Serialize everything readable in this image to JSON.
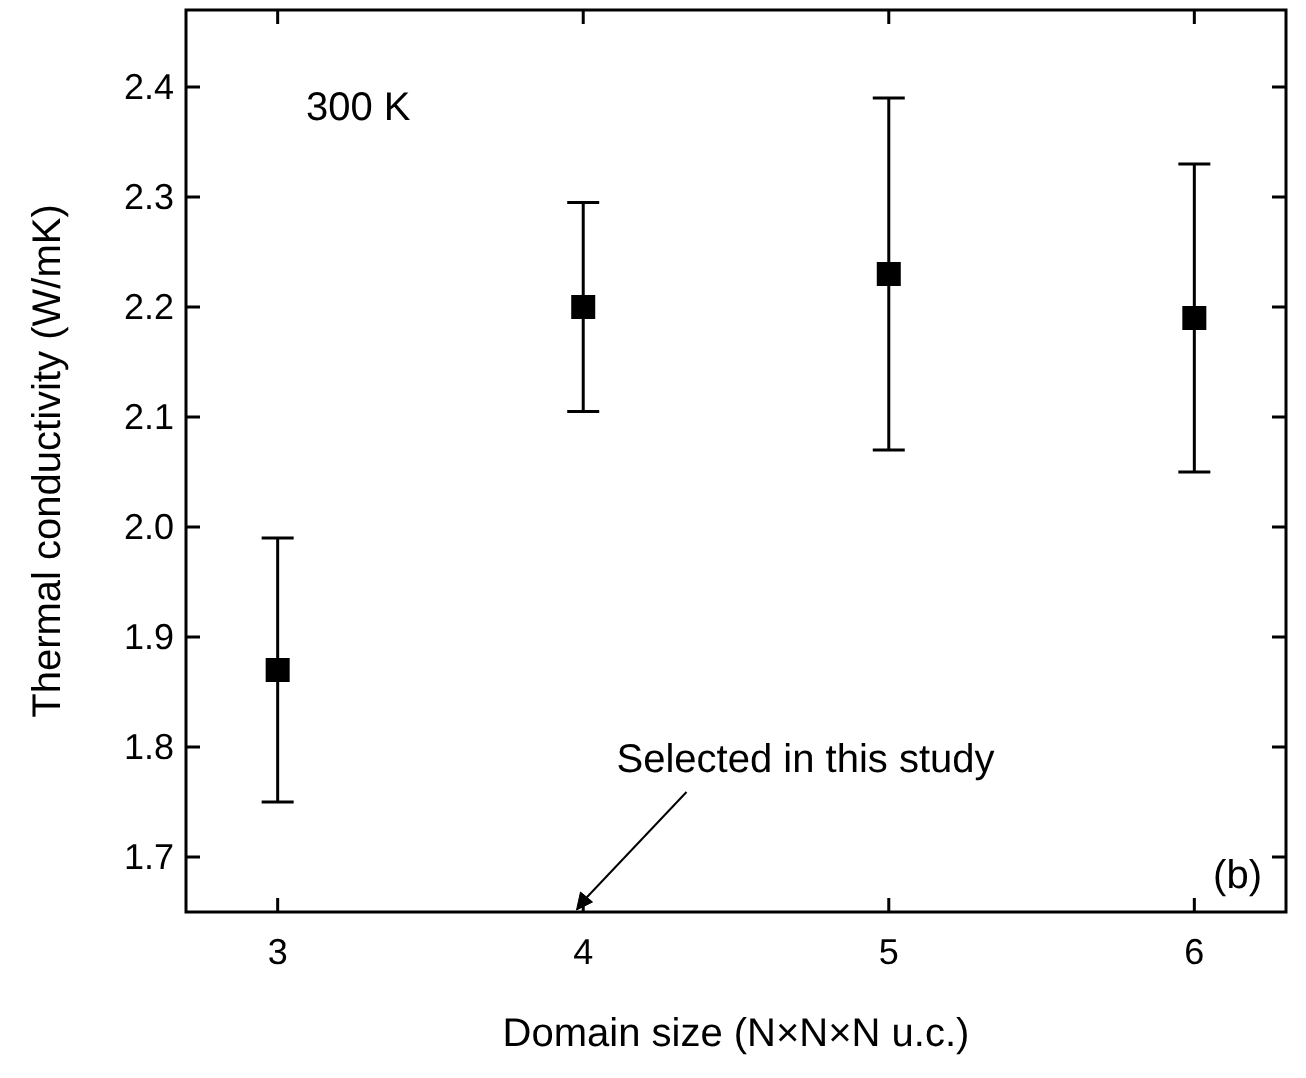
{
  "chart_data": {
    "type": "scatter",
    "xlabel": "Domain size (N×N×N u.c.)",
    "ylabel": "Thermal conductivity (W/mK)",
    "x": [
      3,
      4,
      5,
      6
    ],
    "values": [
      1.87,
      2.2,
      2.23,
      2.19
    ],
    "errors": [
      [
        1.75,
        1.99
      ],
      [
        2.105,
        2.295
      ],
      [
        2.07,
        2.39
      ],
      [
        2.05,
        2.33
      ]
    ],
    "color": "#000000",
    "marker": "square",
    "xlim": [
      2.7,
      6.3
    ],
    "xticks": [
      3,
      4,
      5,
      6
    ],
    "ylim": [
      1.65,
      2.47
    ],
    "yticks": [
      1.7,
      1.8,
      1.9,
      {
        "value": 2.0,
        "label": "2.0"
      },
      2.1,
      2.2,
      2.3,
      2.4
    ],
    "grid": false,
    "annotations": [
      "300 K",
      "(b)",
      "Selected in this study"
    ]
  }
}
